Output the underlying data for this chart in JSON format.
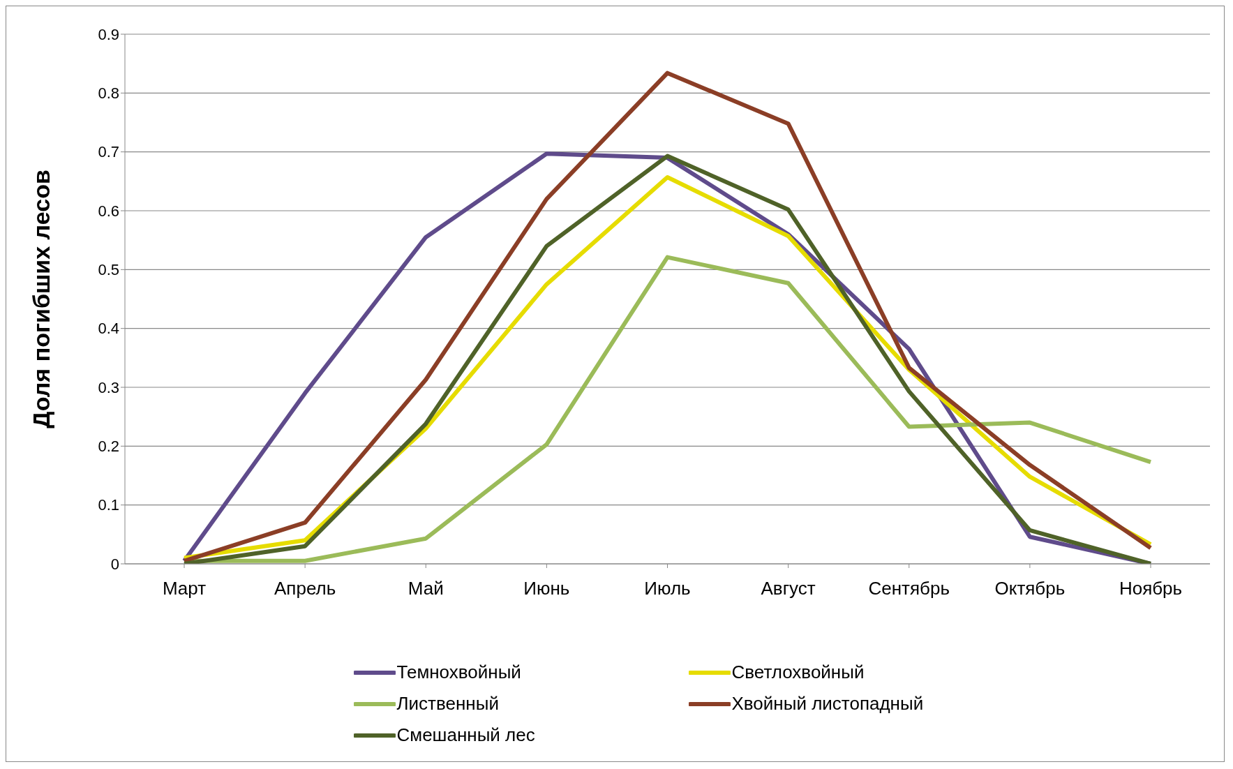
{
  "chart_data": {
    "type": "line",
    "ylabel": "Доля погибших  лесов",
    "categories": [
      "Март",
      "Апрель",
      "Май",
      "Июнь",
      "Июль",
      "Август",
      "Сентябрь",
      "Октябрь",
      "Ноябрь"
    ],
    "series": [
      {
        "name": "Темнохвойный",
        "color": "#5f4b8b",
        "values": [
          0.005,
          0.29,
          0.555,
          0.697,
          0.69,
          0.56,
          0.365,
          0.046,
          0.0
        ]
      },
      {
        "name": "Светлохвойный",
        "color": "#e6dc00",
        "values": [
          0.01,
          0.04,
          0.23,
          0.475,
          0.657,
          0.557,
          0.33,
          0.148,
          0.033
        ]
      },
      {
        "name": "Лиственный",
        "color": "#9bbb59",
        "values": [
          0.005,
          0.005,
          0.043,
          0.203,
          0.521,
          0.477,
          0.233,
          0.24,
          0.173
        ]
      },
      {
        "name": "Хвойный листопадный",
        "color": "#8b3e26",
        "values": [
          0.005,
          0.07,
          0.313,
          0.62,
          0.834,
          0.748,
          0.333,
          0.168,
          0.027
        ]
      },
      {
        "name": "Смешанный лес",
        "color": "#4f6228",
        "values": [
          0.0,
          0.03,
          0.238,
          0.54,
          0.693,
          0.602,
          0.293,
          0.057,
          0.0
        ]
      }
    ],
    "ylim": [
      0,
      0.9
    ],
    "yticks": [
      0,
      0.1,
      0.2,
      0.3,
      0.4,
      0.5,
      0.6,
      0.7,
      0.8,
      0.9
    ],
    "grid": "y",
    "legend": "bottom",
    "marker": "none",
    "line_style": "solid"
  }
}
